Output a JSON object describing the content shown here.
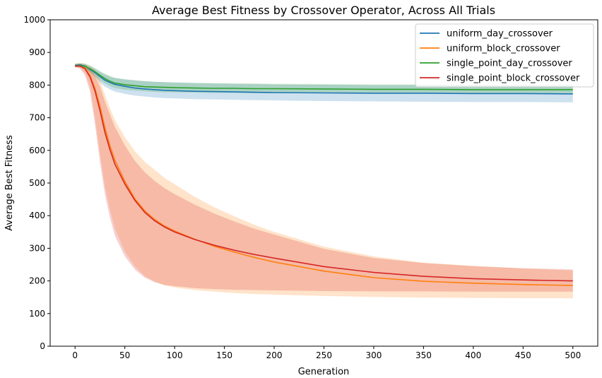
{
  "chart_data": {
    "type": "line",
    "title": "Average Best Fitness by Crossover Operator, Across All Trials",
    "xlabel": "Generation",
    "ylabel": "Average Best Fitness",
    "xlim": [
      -25,
      525
    ],
    "ylim": [
      0,
      1000
    ],
    "xticks": [
      0,
      50,
      100,
      150,
      200,
      250,
      300,
      350,
      400,
      450,
      500
    ],
    "yticks": [
      0,
      100,
      200,
      300,
      400,
      500,
      600,
      700,
      800,
      900,
      1000
    ],
    "grid": false,
    "legend_position": "top-right",
    "x": [
      0,
      5,
      10,
      15,
      20,
      25,
      30,
      35,
      40,
      50,
      60,
      70,
      80,
      90,
      100,
      120,
      140,
      160,
      180,
      200,
      250,
      300,
      350,
      400,
      450,
      500
    ],
    "series": [
      {
        "name": "uniform_day_crossover",
        "color": "#1f77b4",
        "values": [
          860,
          862,
          858,
          848,
          838,
          826,
          815,
          808,
          802,
          796,
          791,
          788,
          786,
          784,
          783,
          781,
          780,
          779,
          778,
          777,
          776,
          775,
          775,
          774,
          774,
          773
        ],
        "lower": [
          858,
          856,
          850,
          838,
          824,
          808,
          795,
          787,
          780,
          773,
          768,
          765,
          762,
          760,
          759,
          757,
          756,
          755,
          754,
          753,
          751,
          750,
          749,
          748,
          748,
          747
        ],
        "upper": [
          864,
          866,
          864,
          858,
          850,
          840,
          832,
          826,
          822,
          818,
          815,
          812,
          810,
          809,
          808,
          806,
          805,
          804,
          803,
          802,
          801,
          800,
          800,
          800,
          799,
          799
        ]
      },
      {
        "name": "uniform_block_crossover",
        "color": "#ff7f0e",
        "values": [
          858,
          858,
          852,
          830,
          790,
          735,
          670,
          615,
          570,
          505,
          452,
          415,
          388,
          368,
          353,
          328,
          306,
          288,
          272,
          258,
          230,
          210,
          199,
          193,
          189,
          186
        ],
        "lower": [
          856,
          852,
          838,
          795,
          700,
          590,
          490,
          420,
          360,
          290,
          245,
          215,
          198,
          186,
          180,
          172,
          167,
          163,
          160,
          158,
          154,
          151,
          149,
          148,
          147,
          147
        ],
        "upper": [
          865,
          866,
          864,
          858,
          846,
          815,
          770,
          730,
          693,
          640,
          598,
          565,
          540,
          515,
          496,
          458,
          425,
          398,
          372,
          350,
          305,
          275,
          256,
          246,
          238,
          232
        ]
      },
      {
        "name": "single_point_day_crossover",
        "color": "#2ca02c",
        "values": [
          858,
          860,
          857,
          850,
          841,
          830,
          820,
          812,
          806,
          801,
          798,
          795,
          794,
          793,
          792,
          791,
          790,
          790,
          789,
          789,
          788,
          787,
          787,
          786,
          786,
          786
        ],
        "lower": [
          855,
          855,
          850,
          840,
          828,
          815,
          805,
          797,
          791,
          786,
          783,
          781,
          779,
          778,
          778,
          777,
          776,
          776,
          775,
          775,
          775,
          774,
          774,
          774,
          773,
          773
        ],
        "upper": [
          866,
          868,
          866,
          860,
          852,
          843,
          835,
          828,
          822,
          817,
          814,
          812,
          810,
          809,
          808,
          807,
          806,
          805,
          805,
          804,
          803,
          802,
          802,
          801,
          801,
          801
        ]
      },
      {
        "name": "single_point_block_crossover",
        "color": "#d62728",
        "values": [
          858,
          858,
          850,
          825,
          782,
          722,
          655,
          603,
          558,
          497,
          447,
          410,
          384,
          365,
          350,
          327,
          309,
          294,
          281,
          270,
          244,
          226,
          214,
          207,
          203,
          200
        ],
        "lower": [
          855,
          850,
          830,
          780,
          680,
          565,
          465,
          395,
          338,
          275,
          235,
          210,
          196,
          188,
          184,
          178,
          175,
          173,
          172,
          171,
          169,
          168,
          168,
          167,
          167,
          167
        ],
        "upper": [
          864,
          865,
          860,
          848,
          828,
          795,
          750,
          710,
          672,
          615,
          568,
          533,
          506,
          484,
          466,
          434,
          406,
          382,
          360,
          342,
          298,
          270,
          255,
          245,
          239,
          235
        ]
      }
    ]
  }
}
